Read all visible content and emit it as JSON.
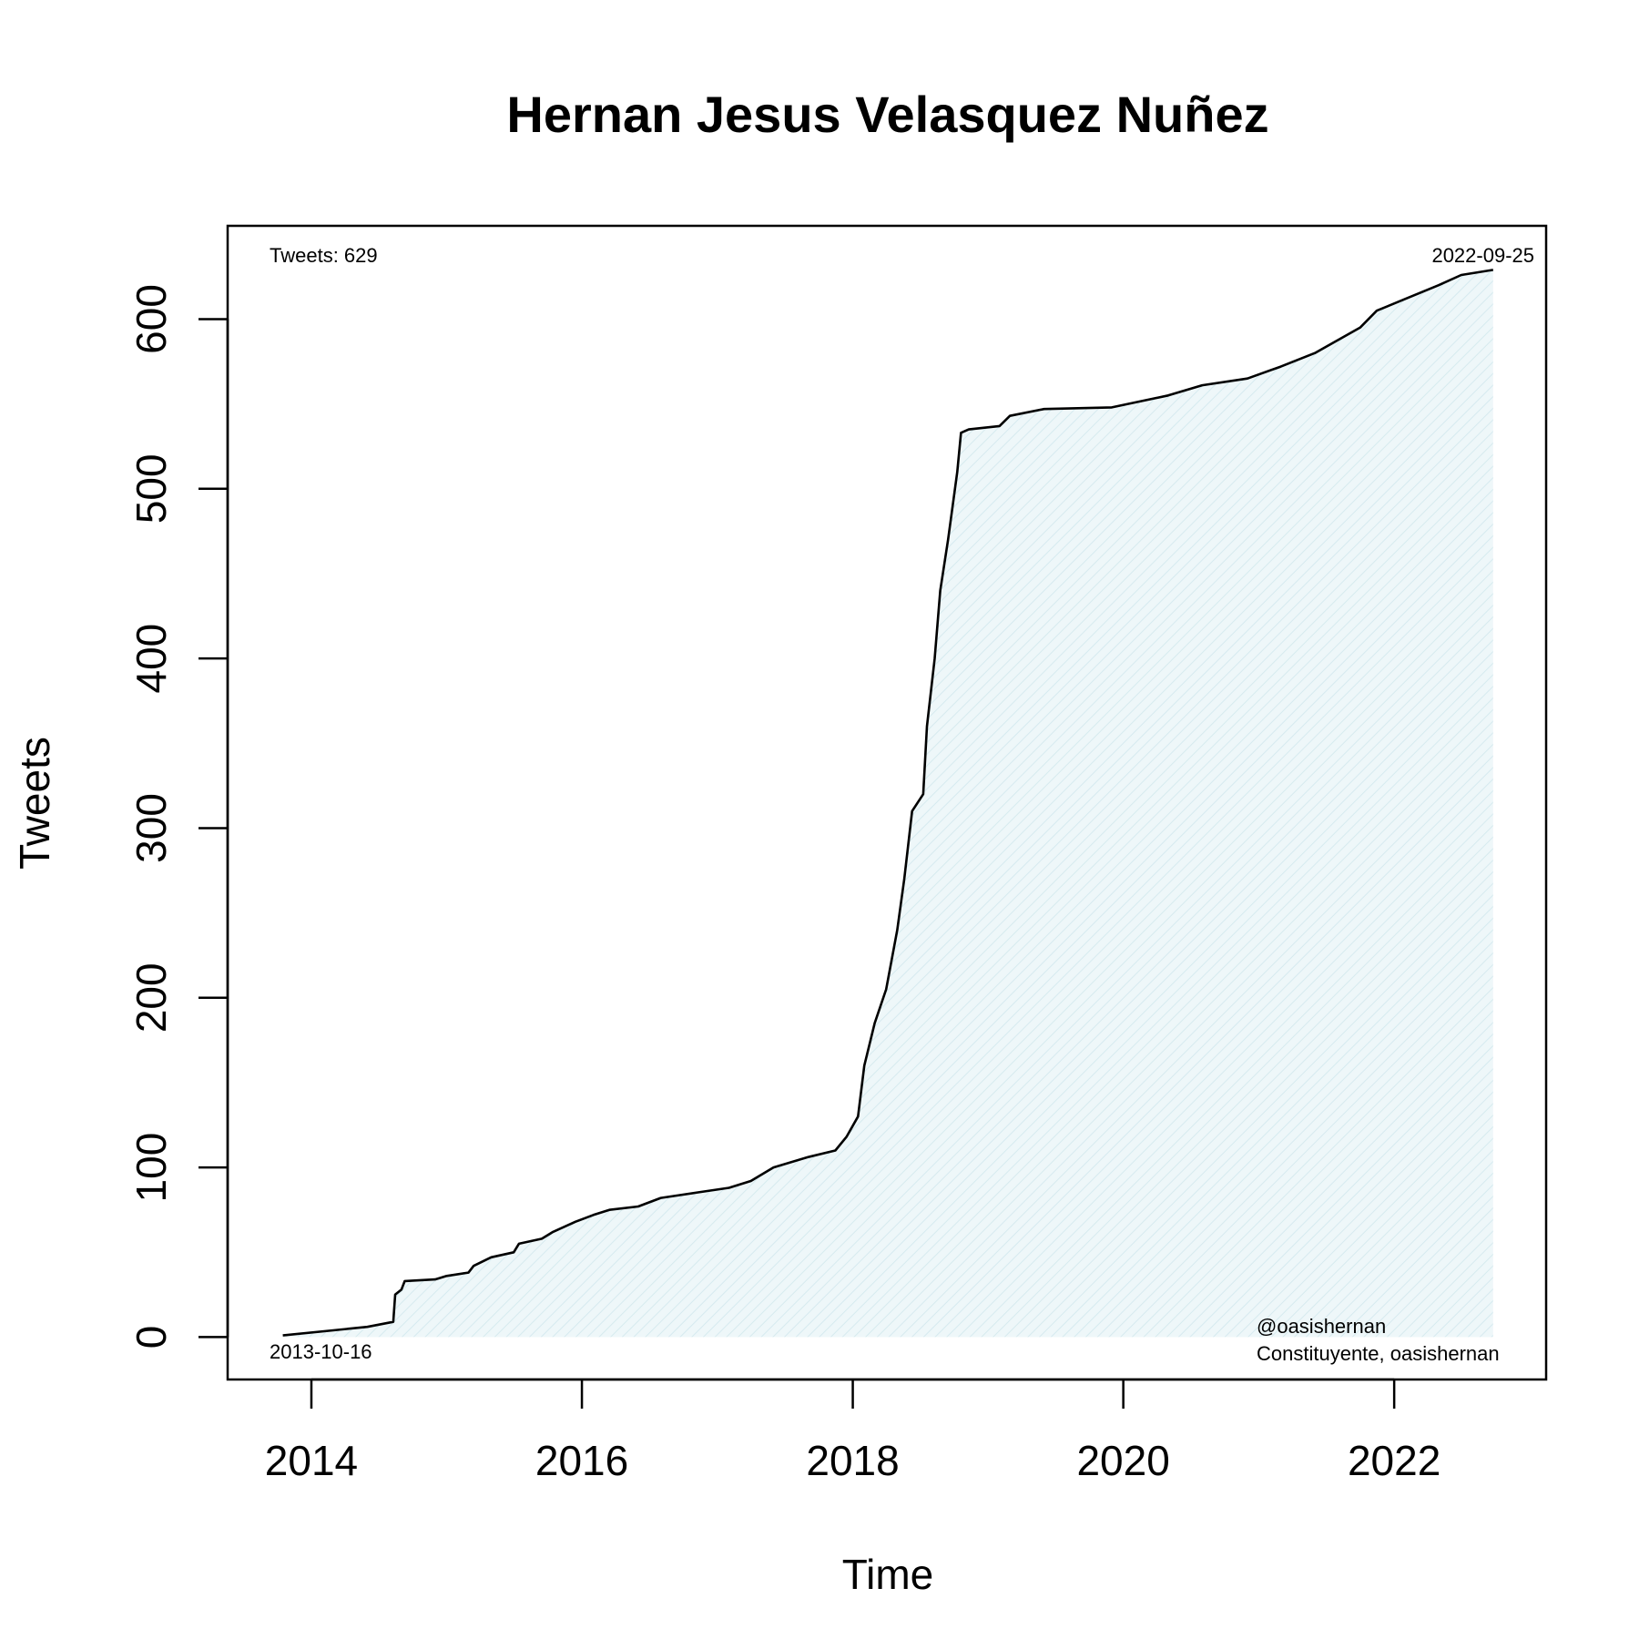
{
  "chart_data": {
    "type": "area",
    "title": "Hernan Jesus Velasquez Nuñez",
    "xlabel": "Time",
    "ylabel": "Tweets",
    "xlim": [
      "2013-05-20",
      "2023-02-15"
    ],
    "ylim": [
      -25,
      655
    ],
    "x_ticks": [
      "2014",
      "2016",
      "2018",
      "2020",
      "2022"
    ],
    "y_ticks": [
      "0",
      "100",
      "200",
      "300",
      "400",
      "500",
      "600"
    ],
    "grid": false,
    "legend": "none",
    "colors": {
      "line": "#000000",
      "fill": "#e3f1f4"
    },
    "annotations": {
      "total": "Tweets: 629",
      "end_date": "2022-09-25",
      "start_date": "2013-10-16",
      "handle": "@oasishernan",
      "description": "Constituyente, oasishernan"
    },
    "series": [
      {
        "points": [
          [
            "2013-10-16",
            1
          ],
          [
            "2014-03-01",
            4
          ],
          [
            "2014-06-01",
            6
          ],
          [
            "2014-08-10",
            9
          ],
          [
            "2014-08-15",
            25
          ],
          [
            "2014-09-01",
            28
          ],
          [
            "2014-09-10",
            33
          ],
          [
            "2014-12-01",
            34
          ],
          [
            "2015-01-01",
            36
          ],
          [
            "2015-03-01",
            38
          ],
          [
            "2015-03-15",
            42
          ],
          [
            "2015-05-01",
            47
          ],
          [
            "2015-07-01",
            50
          ],
          [
            "2015-07-15",
            55
          ],
          [
            "2015-09-15",
            58
          ],
          [
            "2015-10-15",
            62
          ],
          [
            "2015-12-15",
            68
          ],
          [
            "2016-02-01",
            72
          ],
          [
            "2016-03-15",
            75
          ],
          [
            "2016-06-01",
            77
          ],
          [
            "2016-08-01",
            82
          ],
          [
            "2016-11-01",
            85
          ],
          [
            "2017-02-01",
            88
          ],
          [
            "2017-04-01",
            92
          ],
          [
            "2017-06-01",
            100
          ],
          [
            "2017-09-01",
            106
          ],
          [
            "2017-11-15",
            110
          ],
          [
            "2017-12-15",
            118
          ],
          [
            "2018-01-15",
            130
          ],
          [
            "2018-02-01",
            160
          ],
          [
            "2018-03-01",
            185
          ],
          [
            "2018-04-01",
            205
          ],
          [
            "2018-05-01",
            240
          ],
          [
            "2018-05-20",
            270
          ],
          [
            "2018-06-10",
            310
          ],
          [
            "2018-07-10",
            320
          ],
          [
            "2018-07-20",
            360
          ],
          [
            "2018-08-10",
            400
          ],
          [
            "2018-08-25",
            440
          ],
          [
            "2018-09-15",
            470
          ],
          [
            "2018-10-10",
            510
          ],
          [
            "2018-10-20",
            533
          ],
          [
            "2018-11-10",
            535
          ],
          [
            "2019-02-01",
            537
          ],
          [
            "2019-03-01",
            543
          ],
          [
            "2019-06-01",
            547
          ],
          [
            "2019-12-01",
            548
          ],
          [
            "2020-05-01",
            555
          ],
          [
            "2020-08-01",
            561
          ],
          [
            "2020-12-01",
            565
          ],
          [
            "2021-03-01",
            572
          ],
          [
            "2021-06-01",
            580
          ],
          [
            "2021-10-01",
            595
          ],
          [
            "2021-11-15",
            605
          ],
          [
            "2022-02-01",
            612
          ],
          [
            "2022-05-01",
            620
          ],
          [
            "2022-07-01",
            626
          ],
          [
            "2022-09-25",
            629
          ]
        ]
      }
    ]
  }
}
